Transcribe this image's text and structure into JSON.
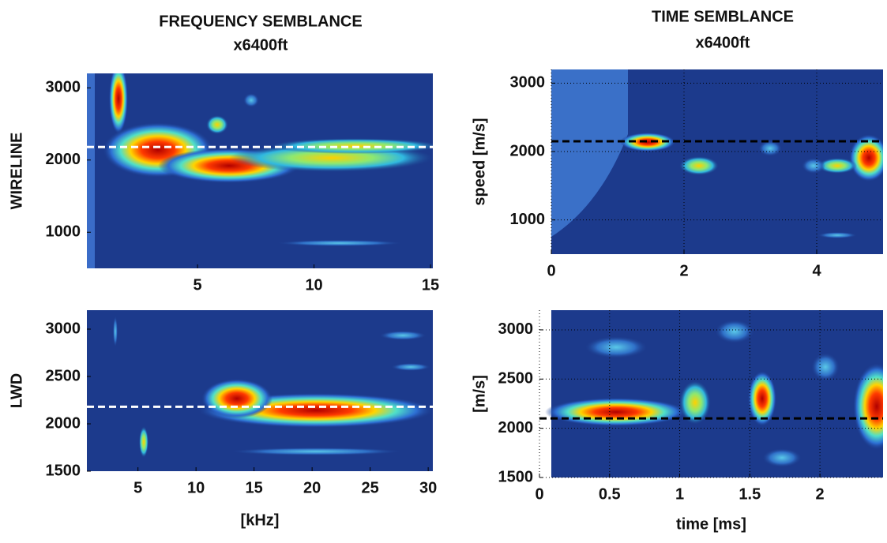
{
  "chart_data": [
    {
      "type": "heatmap",
      "title": "FREQUENCY SEMBLANCE",
      "subtitle": "x6400ft",
      "ylabel": "WIRELINE",
      "xlim": [
        0.25,
        15.1
      ],
      "xticks": [
        5,
        10,
        15
      ],
      "ylim": [
        500,
        3200
      ],
      "yticks": [
        1000,
        2000,
        3000
      ],
      "reference_line": 2180,
      "reference_color": "#ffffff",
      "grid": false
    },
    {
      "type": "heatmap",
      "ylabel": "LWD",
      "xlabel": "[kHz]",
      "xlim": [
        0.6,
        30.4
      ],
      "xticks": [
        5,
        10,
        15,
        20,
        25,
        30
      ],
      "ylim": [
        1500,
        3200
      ],
      "yticks": [
        1500,
        2000,
        2500,
        3000
      ],
      "reference_line": 2180,
      "reference_color": "#ffffff",
      "grid": false
    },
    {
      "type": "heatmap",
      "title": "TIME SEMBLANCE",
      "subtitle": "x6400ft",
      "ylabel": "speed  [m/s]",
      "xlim": [
        0,
        5
      ],
      "xticks": [
        0,
        2,
        4
      ],
      "ylim": [
        500,
        3200
      ],
      "yticks": [
        1000,
        2000,
        3000
      ],
      "reference_line": 2150,
      "reference_color": "#000000",
      "grid": true
    },
    {
      "type": "heatmap",
      "ylabel": "[m/s]",
      "xlabel": "time [ms]",
      "xlim": [
        0,
        2.45
      ],
      "xticks": [
        0,
        0.5,
        1,
        1.5,
        2
      ],
      "ylim": [
        1500,
        3200
      ],
      "yticks": [
        1500,
        2000,
        2500,
        3000
      ],
      "reference_line": 2100,
      "reference_color": "#000000",
      "grid": true
    }
  ]
}
